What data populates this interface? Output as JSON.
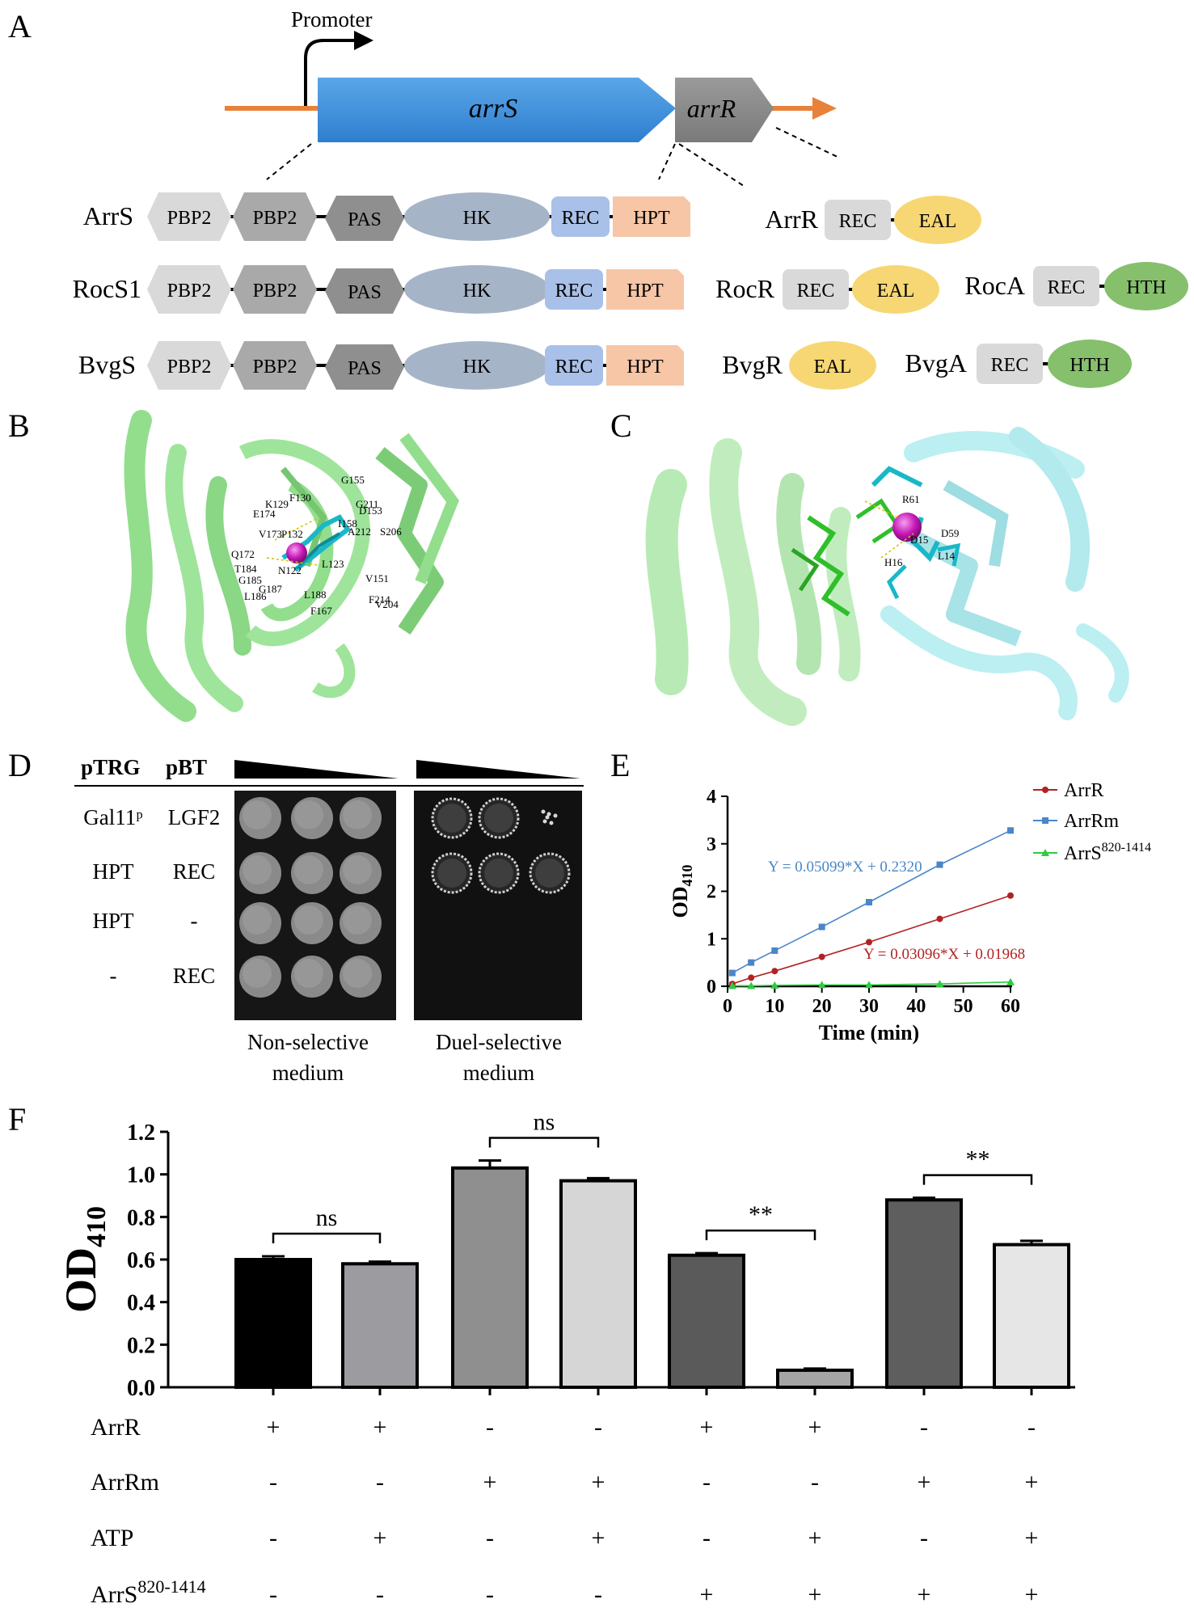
{
  "panels": {
    "A": {
      "letter": "A",
      "promoter_label": "Promoter",
      "genes": {
        "arrS": "arrS",
        "arrR": "arrR"
      },
      "proteins": {
        "ArrS": {
          "name": "ArrS",
          "domains": [
            "PBP2",
            "PBP2",
            "PAS",
            "HK",
            "REC",
            "HPT"
          ]
        },
        "RocS1": {
          "name": "RocS1",
          "domains": [
            "PBP2",
            "PBP2",
            "PAS",
            "HK",
            "REC",
            "HPT"
          ]
        },
        "BvgS": {
          "name": "BvgS",
          "domains": [
            "PBP2",
            "PBP2",
            "PAS",
            "HK",
            "REC",
            "HPT"
          ]
        },
        "ArrR": {
          "name": "ArrR",
          "domains": [
            "REC",
            "EAL"
          ]
        },
        "RocR": {
          "name": "RocR",
          "domains": [
            "REC",
            "EAL"
          ]
        },
        "RocA": {
          "name": "RocA",
          "domains": [
            "REC",
            "HTH"
          ]
        },
        "BvgR": {
          "name": "BvgR",
          "domains": [
            "EAL"
          ]
        },
        "BvgA": {
          "name": "BvgA",
          "domains": [
            "REC",
            "HTH"
          ]
        }
      }
    },
    "B": {
      "letter": "B",
      "residues": [
        "G155",
        "F130",
        "K129",
        "G211",
        "D153",
        "E174",
        "V173",
        "P132",
        "I158",
        "A212",
        "S206",
        "Q172",
        "T184",
        "N122",
        "L123",
        "V151",
        "G185",
        "L186",
        "G187",
        "L188",
        "F214",
        "V204",
        "F167"
      ]
    },
    "C": {
      "letter": "C",
      "residues": [
        "R61",
        "D59",
        "D15",
        "L14",
        "H16"
      ]
    },
    "D": {
      "letter": "D",
      "col_headers": [
        "pTRG",
        "pBT"
      ],
      "rows": [
        {
          "ptrg": "Gal11ᵖ",
          "pbt": "LGF2"
        },
        {
          "ptrg": "HPT",
          "pbt": "REC"
        },
        {
          "ptrg": "HPT",
          "pbt": "-"
        },
        {
          "ptrg": "-",
          "pbt": "REC"
        }
      ],
      "medium_labels": {
        "nonselective": [
          "Non-selective",
          "medium"
        ],
        "selective": [
          "Duel-selective",
          "medium"
        ]
      }
    },
    "E": {
      "letter": "E"
    },
    "F": {
      "letter": "F"
    }
  },
  "chart_data": [
    {
      "panel": "E",
      "type": "line",
      "xlabel": "Time (min)",
      "ylabel": "OD410",
      "xlim": [
        0,
        60
      ],
      "ylim": [
        0,
        4
      ],
      "xticks": [
        0,
        10,
        20,
        30,
        40,
        50,
        60
      ],
      "yticks": [
        0,
        1,
        2,
        3,
        4
      ],
      "series": [
        {
          "name": "ArrR",
          "color": "#b22222",
          "marker": "circle",
          "x": [
            1,
            5,
            10,
            20,
            30,
            45,
            60
          ],
          "y": [
            0.05,
            0.18,
            0.32,
            0.62,
            0.93,
            1.42,
            1.91
          ],
          "equation": "Y = 0.03096*X + 0.01968",
          "fit": [
            0.03096,
            0.01968
          ]
        },
        {
          "name": "ArrRm",
          "color": "#4a86c8",
          "marker": "square",
          "x": [
            1,
            5,
            10,
            20,
            30,
            45,
            60
          ],
          "y": [
            0.28,
            0.5,
            0.75,
            1.25,
            1.77,
            2.56,
            3.28
          ],
          "equation": "Y = 0.05099*X + 0.2320",
          "fit": [
            0.05099,
            0.232
          ]
        },
        {
          "name": "ArrS820-1414",
          "name_base": "ArrS",
          "name_sup": "820-1414",
          "color": "#2ecc40",
          "marker": "triangle",
          "x": [
            1,
            5,
            10,
            20,
            30,
            45,
            60
          ],
          "y": [
            0.01,
            0.01,
            0.02,
            0.03,
            0.03,
            0.05,
            0.09
          ]
        }
      ]
    },
    {
      "panel": "F",
      "type": "bar",
      "ylabel": "OD410",
      "ylim": [
        0,
        1.2
      ],
      "yticks": [
        "0.0",
        "0.2",
        "0.4",
        "0.6",
        "0.8",
        "1.0",
        "1.2"
      ],
      "values": [
        0.6,
        0.58,
        1.03,
        0.97,
        0.62,
        0.08,
        0.88,
        0.67
      ],
      "errors": [
        0.015,
        0.01,
        0.035,
        0.012,
        0.01,
        0.008,
        0.01,
        0.018
      ],
      "colors": [
        "#000000",
        "#9b9ba0",
        "#8f8f8f",
        "#d6d6d6",
        "#5a5a5a",
        "#a5a5a5",
        "#5e5e5e",
        "#e6e6e6"
      ],
      "significance": [
        {
          "pair": [
            0,
            1
          ],
          "label": "ns"
        },
        {
          "pair": [
            2,
            3
          ],
          "label": "ns"
        },
        {
          "pair": [
            4,
            5
          ],
          "label": "**"
        },
        {
          "pair": [
            6,
            7
          ],
          "label": "**"
        }
      ],
      "conditions": [
        {
          "label": "ArrR",
          "values": [
            "+",
            "+",
            "-",
            "-",
            "+",
            "+",
            "-",
            "-"
          ]
        },
        {
          "label": "ArrRm",
          "values": [
            "-",
            "-",
            "+",
            "+",
            "-",
            "-",
            "+",
            "+"
          ]
        },
        {
          "label": "ATP",
          "values": [
            "-",
            "+",
            "-",
            "+",
            "-",
            "+",
            "-",
            "+"
          ]
        },
        {
          "label": "ArrS",
          "label_sup": "820-1414",
          "values": [
            "-",
            "-",
            "-",
            "-",
            "+",
            "+",
            "+",
            "+"
          ]
        }
      ]
    }
  ]
}
